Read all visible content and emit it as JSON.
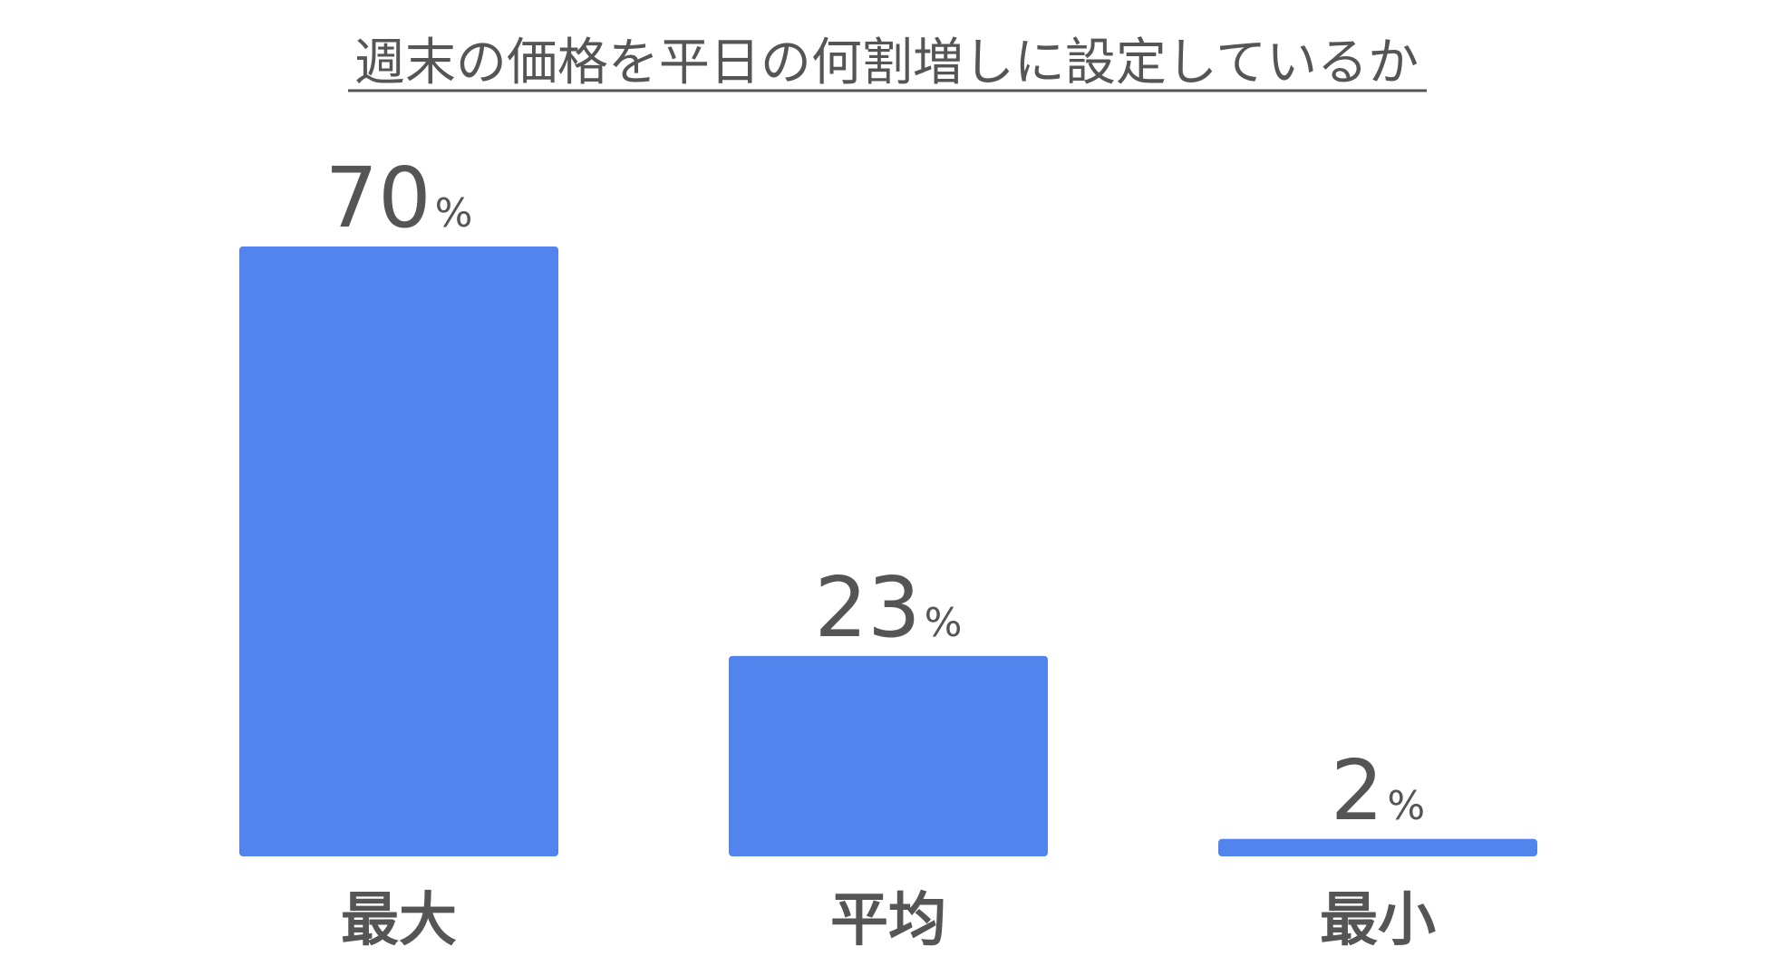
{
  "chart_data": {
    "type": "bar",
    "title": "週末の価格を平日の何割増しに設定しているか",
    "categories": [
      "最大",
      "平均",
      "最小"
    ],
    "values": [
      70,
      23,
      2
    ],
    "unit": "%",
    "ylim": [
      0,
      70
    ],
    "grid": false,
    "legend": "none",
    "bar_color": "#5383EC",
    "text_color": "#555555"
  }
}
